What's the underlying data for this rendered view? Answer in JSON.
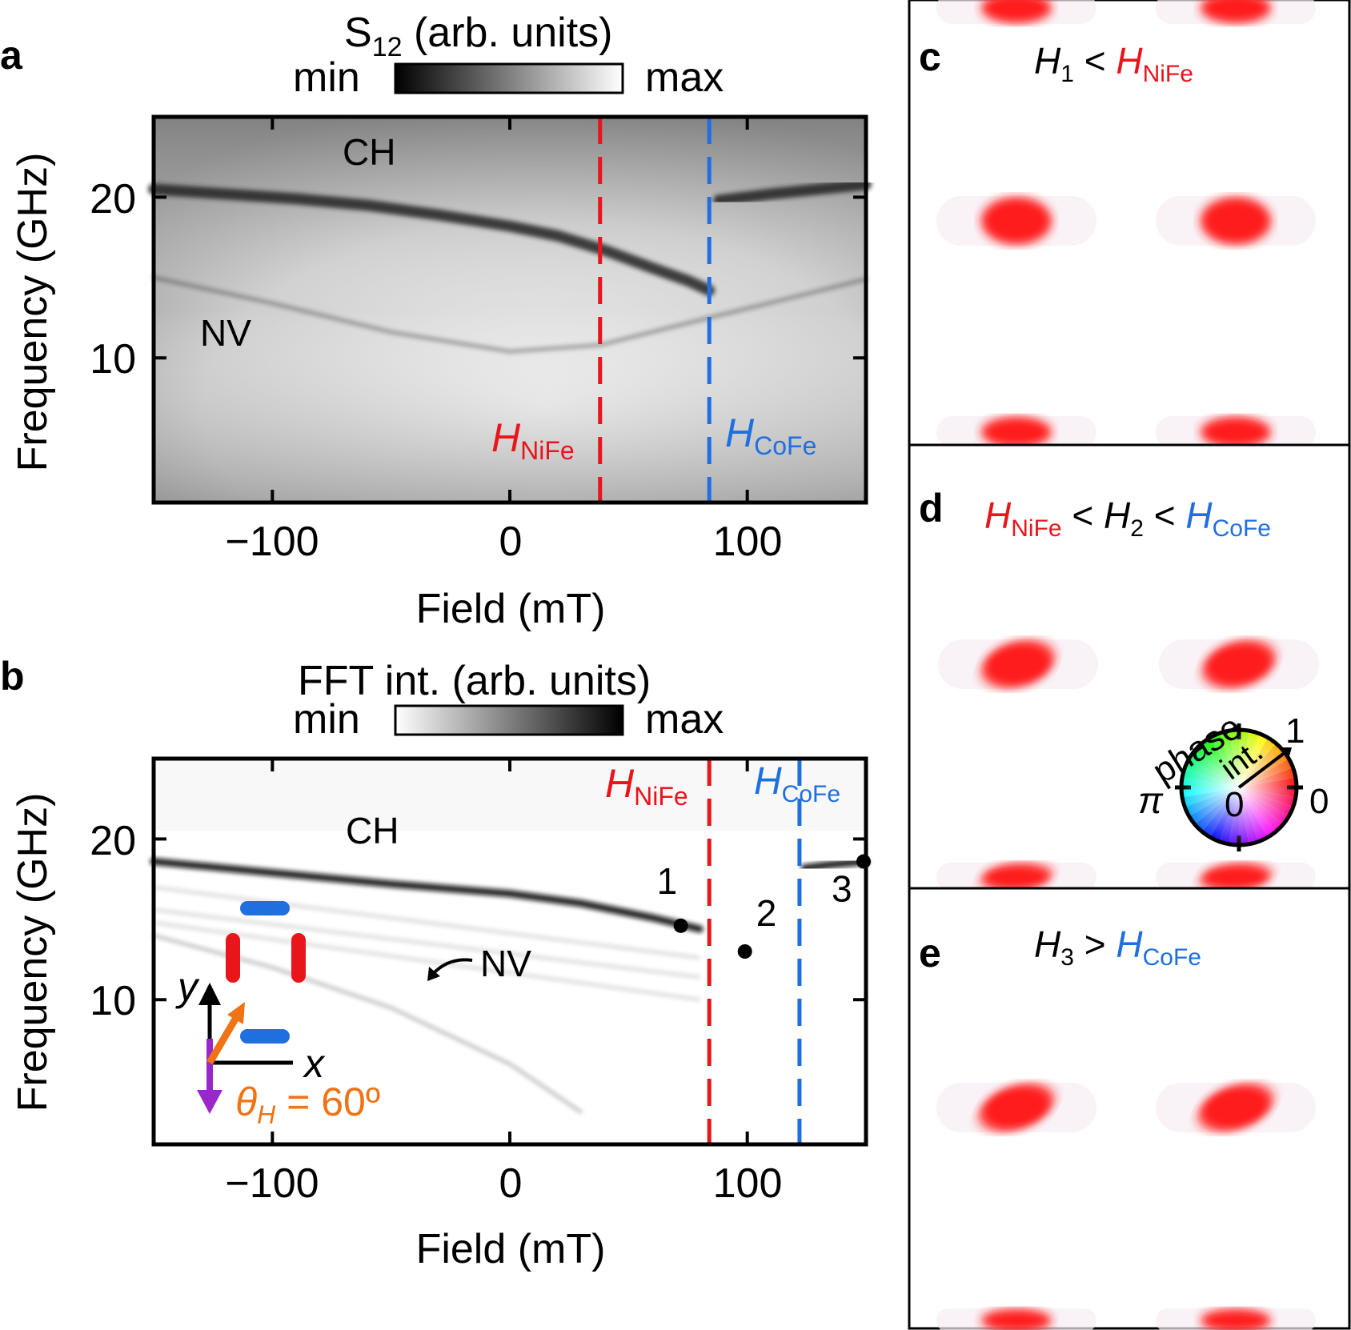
{
  "panels": {
    "a": {
      "letter": "a",
      "colorbar": {
        "title_main": "S",
        "title_sub": "12",
        "title_rest": " (arb. units)",
        "min_label": "min",
        "max_label": "max"
      },
      "xlabel": "Field (mT)",
      "ylabel": "Frequency (GHz)",
      "xticks": [
        "−100",
        "0",
        "100"
      ],
      "yticks": [
        "20",
        "10"
      ],
      "mode_labels": {
        "ch": "CH",
        "nv": "NV"
      },
      "line_labels": {
        "nife_H": "H",
        "nife_sub": "NiFe",
        "cofe_H": "H",
        "cofe_sub": "CoFe"
      }
    },
    "b": {
      "letter": "b",
      "colorbar": {
        "title": "FFT int. (arb. units)",
        "min_label": "min",
        "max_label": "max"
      },
      "xlabel": "Field (mT)",
      "ylabel": "Frequency (GHz)",
      "xticks": [
        "−100",
        "0",
        "100"
      ],
      "yticks": [
        "20",
        "10"
      ],
      "mode_labels": {
        "ch": "CH",
        "nv": "NV"
      },
      "line_labels": {
        "nife_H": "H",
        "nife_sub": "NiFe",
        "cofe_H": "H",
        "cofe_sub": "CoFe"
      },
      "point_labels": [
        "1",
        "2",
        "3"
      ],
      "inset": {
        "y_label": "y",
        "x_label": "x",
        "theta": "θ",
        "theta_sub": "H",
        "theta_value": " = 60º"
      }
    },
    "c": {
      "letter": "c",
      "H": "H",
      "sub": "1",
      "op": " < ",
      "ref_H": "H",
      "ref_sub": "NiFe"
    },
    "d": {
      "letter": "d",
      "ref1_H": "H",
      "ref1_sub": "NiFe",
      "op1": " < ",
      "H": "H",
      "sub": "2",
      "op2": " < ",
      "ref2_H": "H",
      "ref2_sub": "CoFe",
      "wheel": {
        "phase": "phase",
        "int": "int.",
        "one": "1",
        "pi": "π",
        "zero_center": "0",
        "zero_right": "0"
      }
    },
    "e": {
      "letter": "e",
      "H": "H",
      "sub": "3",
      "op": " > ",
      "ref_H": "H",
      "ref_sub": "CoFe"
    }
  },
  "colors": {
    "nife": "#e8151b",
    "cofe": "#1f6fe0",
    "theta": "#f07316",
    "purple": "#9a27c9",
    "mode": "#ff2020"
  },
  "chart_data": [
    {
      "type": "heatmap",
      "panel": "a",
      "x_range": [
        -150,
        150
      ],
      "y_range": [
        1,
        25
      ],
      "colorbar": "grayscale, dark = min, light = max",
      "vertical_lines": [
        {
          "x": 38,
          "label": "H_NiFe"
        },
        {
          "x": 84,
          "label": "H_CoFe"
        }
      ],
      "series": [
        {
          "name": "CH",
          "x": [
            -150,
            -120,
            -90,
            -60,
            -30,
            0,
            20,
            40,
            60,
            75,
            84
          ],
          "y": [
            20.5,
            20.2,
            19.9,
            19.5,
            18.9,
            18.2,
            17.6,
            16.7,
            15.6,
            14.8,
            14.2
          ]
        },
        {
          "name": "CH",
          "x": [
            88,
            110,
            130,
            150
          ],
          "y": [
            19.8,
            20.2,
            20.5,
            20.8
          ]
        },
        {
          "name": "NV",
          "x": [
            -150,
            -100,
            -50,
            0,
            38,
            84,
            120,
            150
          ],
          "y": [
            15.0,
            13.4,
            11.6,
            10.4,
            10.8,
            12.5,
            13.8,
            14.9
          ]
        }
      ]
    },
    {
      "type": "heatmap",
      "panel": "b",
      "x_range": [
        -150,
        150
      ],
      "y_range": [
        1,
        25
      ],
      "colorbar": "grayscale, light = min, dark = max",
      "vertical_lines": [
        {
          "x": 84,
          "label": "H_NiFe"
        },
        {
          "x": 122,
          "label": "H_CoFe"
        }
      ],
      "points": [
        {
          "label": "1",
          "x": 72,
          "y": 14.6
        },
        {
          "label": "2",
          "x": 99,
          "y": 13.0
        },
        {
          "label": "3",
          "x": 149,
          "y": 18.6
        }
      ],
      "series": [
        {
          "name": "CH",
          "x": [
            -150,
            -100,
            -50,
            0,
            30,
            60,
            80
          ],
          "y": [
            18.6,
            17.9,
            17.2,
            16.6,
            16.0,
            15.1,
            14.4
          ]
        },
        {
          "name": "CH",
          "x": [
            124,
            135,
            150
          ],
          "y": [
            18.2,
            18.4,
            18.6
          ]
        },
        {
          "name": "NV",
          "x": [
            -150,
            -100,
            -50,
            0,
            30
          ],
          "y": [
            14.0,
            12.0,
            9.5,
            6.0,
            3.0
          ]
        }
      ]
    }
  ]
}
